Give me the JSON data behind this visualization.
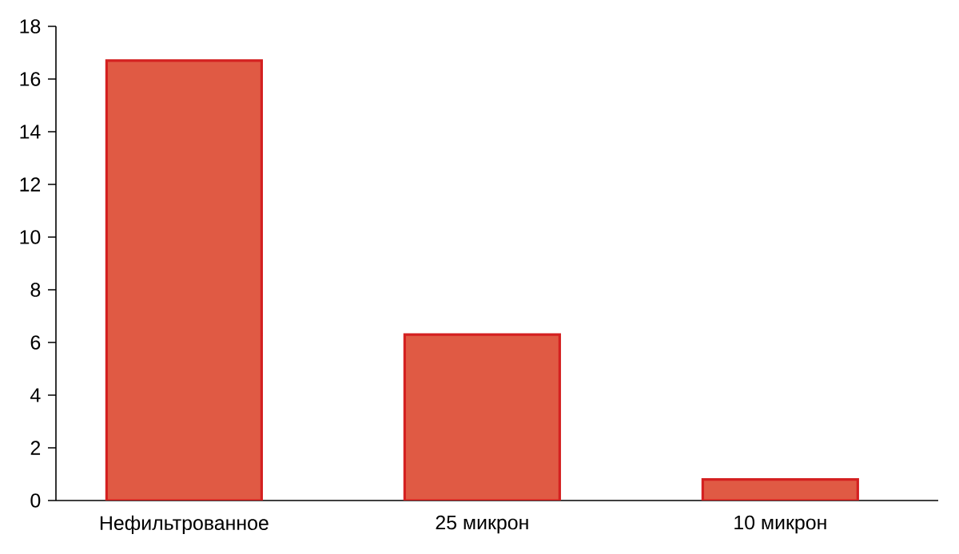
{
  "chart_data": {
    "type": "bar",
    "categories": [
      "Нефильтрованное",
      "25 микрон",
      "10 микрон"
    ],
    "values": [
      16.7,
      6.3,
      0.8
    ],
    "color": "#e05a44",
    "ylim": [
      0,
      18
    ],
    "yticks": [
      0,
      2,
      4,
      6,
      8,
      10,
      12,
      14,
      16,
      18
    ],
    "grid": false
  }
}
